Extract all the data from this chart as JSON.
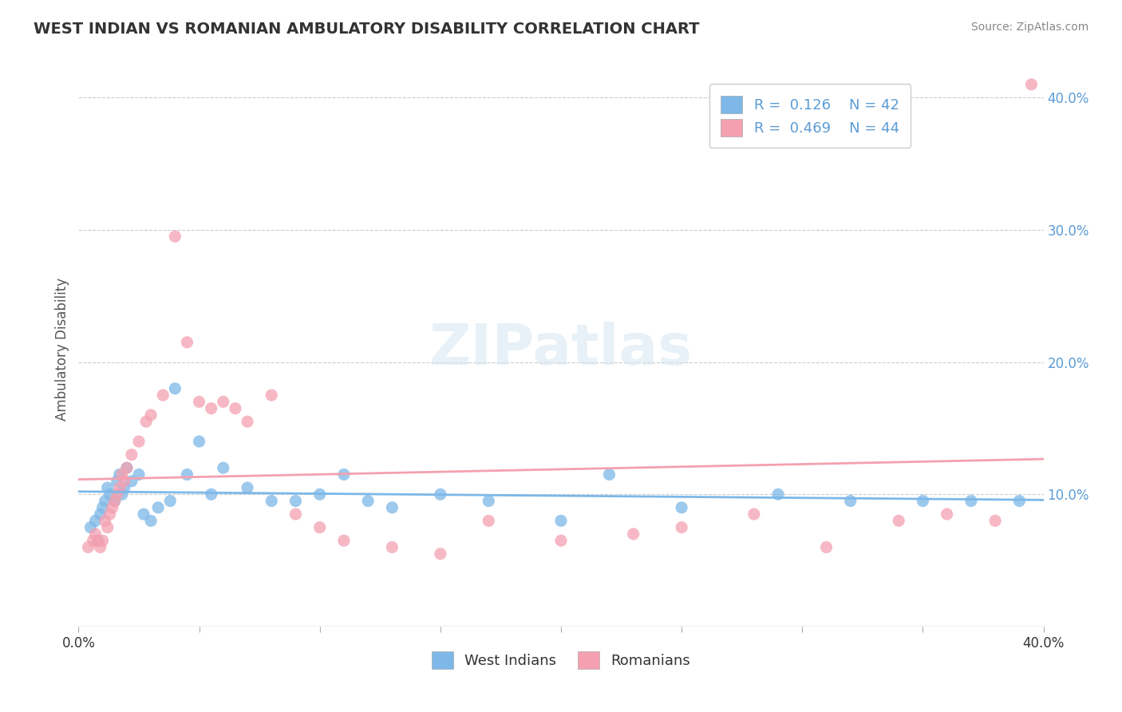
{
  "title": "WEST INDIAN VS ROMANIAN AMBULATORY DISABILITY CORRELATION CHART",
  "source": "Source: ZipAtlas.com",
  "ylabel": "Ambulatory Disability",
  "xlim": [
    0.0,
    0.4
  ],
  "ylim": [
    0.0,
    0.42
  ],
  "yticks_right": [
    0.1,
    0.2,
    0.3,
    0.4
  ],
  "ytick_labels_right": [
    "10.0%",
    "20.0%",
    "30.0%",
    "40.0%"
  ],
  "west_indian_color": "#7db8e8",
  "romanian_color": "#f4a0b0",
  "R_west_indian": 0.126,
  "N_west_indian": 42,
  "R_romanian": 0.469,
  "N_romanian": 44,
  "background_color": "#ffffff",
  "watermark_text": "ZIPatlas",
  "west_indian_x": [
    0.005,
    0.007,
    0.008,
    0.009,
    0.01,
    0.011,
    0.012,
    0.013,
    0.015,
    0.016,
    0.017,
    0.018,
    0.019,
    0.02,
    0.022,
    0.025,
    0.027,
    0.03,
    0.033,
    0.038,
    0.04,
    0.045,
    0.05,
    0.055,
    0.06,
    0.07,
    0.08,
    0.09,
    0.1,
    0.11,
    0.12,
    0.13,
    0.15,
    0.17,
    0.2,
    0.22,
    0.25,
    0.29,
    0.32,
    0.35,
    0.37,
    0.39
  ],
  "west_indian_y": [
    0.075,
    0.08,
    0.065,
    0.085,
    0.09,
    0.095,
    0.105,
    0.1,
    0.095,
    0.11,
    0.115,
    0.1,
    0.105,
    0.12,
    0.11,
    0.115,
    0.085,
    0.08,
    0.09,
    0.095,
    0.18,
    0.115,
    0.14,
    0.1,
    0.12,
    0.105,
    0.095,
    0.095,
    0.1,
    0.115,
    0.095,
    0.09,
    0.1,
    0.095,
    0.08,
    0.115,
    0.09,
    0.1,
    0.095,
    0.095,
    0.095,
    0.095
  ],
  "romanian_x": [
    0.004,
    0.006,
    0.007,
    0.008,
    0.009,
    0.01,
    0.011,
    0.012,
    0.013,
    0.014,
    0.015,
    0.016,
    0.017,
    0.018,
    0.019,
    0.02,
    0.022,
    0.025,
    0.028,
    0.03,
    0.035,
    0.04,
    0.045,
    0.05,
    0.055,
    0.06,
    0.065,
    0.07,
    0.08,
    0.09,
    0.1,
    0.11,
    0.13,
    0.15,
    0.17,
    0.2,
    0.23,
    0.25,
    0.28,
    0.31,
    0.34,
    0.36,
    0.38,
    0.395
  ],
  "romanian_y": [
    0.06,
    0.065,
    0.07,
    0.065,
    0.06,
    0.065,
    0.08,
    0.075,
    0.085,
    0.09,
    0.095,
    0.1,
    0.105,
    0.115,
    0.11,
    0.12,
    0.13,
    0.14,
    0.155,
    0.16,
    0.175,
    0.295,
    0.215,
    0.17,
    0.165,
    0.17,
    0.165,
    0.155,
    0.175,
    0.085,
    0.075,
    0.065,
    0.06,
    0.055,
    0.08,
    0.065,
    0.07,
    0.075,
    0.085,
    0.06,
    0.08,
    0.085,
    0.08,
    0.41
  ]
}
